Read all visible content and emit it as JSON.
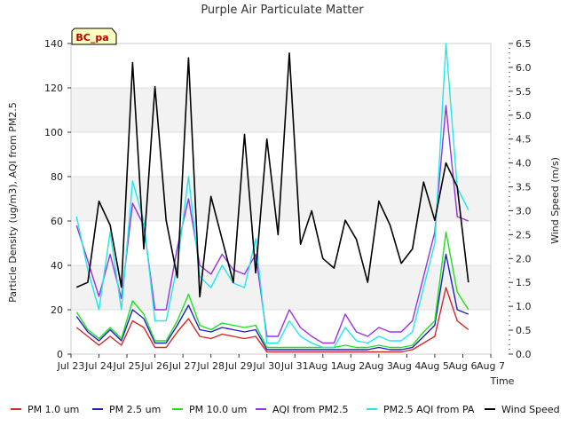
{
  "chart_data": {
    "type": "line",
    "title": "Purple Air Particulate Matter",
    "site_label": "BC_pa",
    "xlabel": "Time",
    "ylabel": "Particle Density (ug/m3), AQI from PM2.5",
    "ylabel_right": "Wind Speed (m/s)",
    "ylim": [
      0,
      140
    ],
    "ylim_right": [
      0,
      6.5
    ],
    "yticks": [
      0,
      20,
      40,
      60,
      80,
      100,
      120,
      140
    ],
    "yticks_right": [
      "0.0",
      "0.5",
      "1.0",
      "1.5",
      "2.0",
      "2.5",
      "3.0",
      "3.5",
      "4.0",
      "4.5",
      "5.0",
      "5.5",
      "6.0",
      "6.5"
    ],
    "xlim": [
      0,
      15
    ],
    "x_tick_labels": [
      "Jul 23",
      "Jul 24",
      "Jul 25",
      "Jul 26",
      "Jul 27",
      "Jul 28",
      "Jul 29",
      "Jul 30",
      "Jul 31",
      "Aug 1",
      "Aug 2",
      "Aug 3",
      "Aug 4",
      "Aug 5",
      "Aug 6",
      "Aug 7"
    ],
    "x": [
      0.2,
      0.6,
      1.0,
      1.4,
      1.8,
      2.2,
      2.6,
      3.0,
      3.4,
      3.8,
      4.2,
      4.6,
      5.0,
      5.4,
      5.8,
      6.2,
      6.6,
      7.0,
      7.4,
      7.8,
      8.2,
      8.6,
      9.0,
      9.4,
      9.8,
      10.2,
      10.6,
      11.0,
      11.4,
      11.8,
      12.2,
      12.6,
      13.0,
      13.4,
      13.8,
      14.2
    ],
    "series": [
      {
        "name": "PM 1.0 um",
        "color": "#d62728",
        "axis": "left",
        "values": [
          12,
          8,
          4,
          8,
          4,
          15,
          12,
          3,
          3,
          10,
          16,
          8,
          7,
          9,
          8,
          7,
          8,
          1,
          1,
          1,
          1,
          1,
          1,
          1,
          1,
          1,
          1,
          1,
          1,
          1,
          2,
          5,
          8,
          30,
          15,
          11
        ]
      },
      {
        "name": "PM 2.5 um",
        "color": "#1f1fbf",
        "axis": "left",
        "values": [
          17,
          10,
          6,
          11,
          6,
          20,
          16,
          5,
          5,
          13,
          22,
          11,
          10,
          12,
          11,
          10,
          11,
          2,
          2,
          2,
          2,
          2,
          2,
          2,
          2,
          2,
          2,
          3,
          2,
          2,
          3,
          8,
          13,
          45,
          20,
          18
        ]
      },
      {
        "name": "PM 10.0 um",
        "color": "#1fe01f",
        "axis": "left",
        "values": [
          19,
          11,
          7,
          12,
          7,
          24,
          18,
          6,
          6,
          15,
          27,
          13,
          11,
          14,
          13,
          12,
          13,
          3,
          3,
          3,
          3,
          3,
          3,
          3,
          4,
          3,
          3,
          4,
          3,
          3,
          4,
          10,
          15,
          55,
          28,
          20
        ]
      },
      {
        "name": "AQI from PM2.5",
        "color": "#9b30e0",
        "axis": "left",
        "values": [
          58,
          42,
          26,
          45,
          25,
          68,
          58,
          20,
          20,
          48,
          70,
          40,
          36,
          45,
          38,
          36,
          45,
          8,
          8,
          20,
          12,
          8,
          5,
          5,
          18,
          10,
          8,
          12,
          10,
          10,
          15,
          35,
          55,
          112,
          62,
          60
        ]
      },
      {
        "name": "PM2.5 AQI from PA",
        "color": "#1fe8ec",
        "axis": "left",
        "values": [
          62,
          38,
          20,
          55,
          20,
          78,
          60,
          15,
          15,
          40,
          80,
          35,
          30,
          40,
          32,
          30,
          52,
          5,
          5,
          15,
          8,
          5,
          3,
          3,
          12,
          6,
          5,
          8,
          6,
          6,
          10,
          30,
          50,
          140,
          75,
          65
        ]
      },
      {
        "name": "Wind Speed",
        "color": "#000000",
        "axis": "right",
        "values": [
          1.4,
          1.5,
          3.2,
          2.7,
          1.4,
          6.1,
          2.2,
          5.6,
          2.8,
          1.6,
          6.2,
          1.2,
          3.3,
          2.4,
          1.5,
          4.6,
          1.7,
          4.5,
          2.5,
          6.3,
          2.3,
          3.0,
          2.0,
          1.8,
          2.8,
          2.4,
          1.5,
          3.2,
          2.7,
          1.9,
          2.2,
          3.6,
          2.8,
          4.0,
          3.5,
          1.5
        ]
      }
    ]
  }
}
